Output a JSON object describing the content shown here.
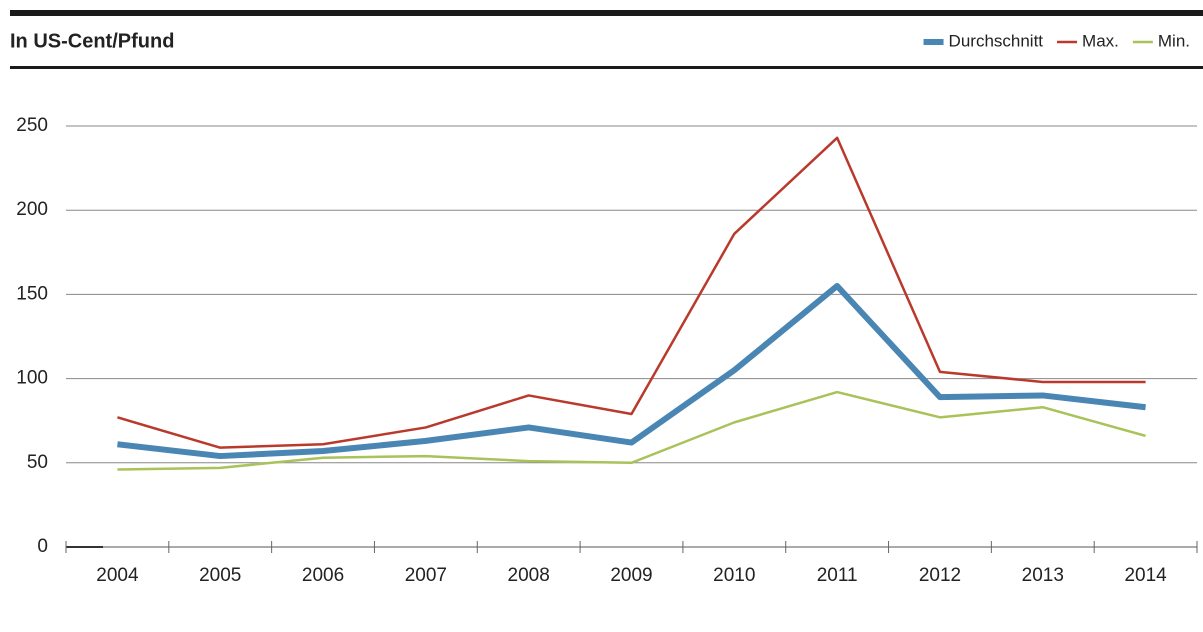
{
  "chart_data": {
    "type": "line",
    "title": "In US-Cent/Pfund",
    "categories": [
      "2004",
      "2005",
      "2006",
      "2007",
      "2008",
      "2009",
      "2010",
      "2011",
      "2012",
      "2013",
      "2014"
    ],
    "series": [
      {
        "name": "Durchschnitt",
        "color": "#4a86b4",
        "values": [
          61,
          54,
          57,
          63,
          71,
          62,
          105,
          155,
          89,
          90,
          83
        ]
      },
      {
        "name": "Max.",
        "color": "#b93a2c",
        "values": [
          77,
          59,
          61,
          71,
          90,
          79,
          186,
          243,
          104,
          98,
          98
        ]
      },
      {
        "name": "Min.",
        "color": "#a9c25a",
        "values": [
          46,
          47,
          53,
          54,
          51,
          50,
          74,
          92,
          77,
          83,
          66
        ]
      }
    ],
    "ylim": [
      0,
      250
    ],
    "yticks": [
      0,
      50,
      100,
      150,
      200,
      250
    ],
    "grid": true,
    "legend": "top-right"
  }
}
